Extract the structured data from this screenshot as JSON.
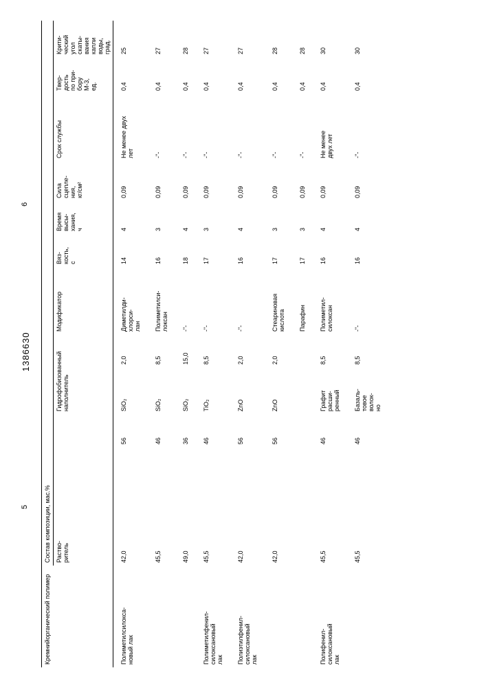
{
  "page_left": "5",
  "doc_number": "1386630",
  "page_right": "6",
  "headers": {
    "polymer_group": "Кремнийорганический полимер",
    "composition_group": "Состав композиции, мас.%",
    "solvent": "Раство-\nритель",
    "filler": "Гидрофобизованный наполнитель",
    "modifier": "Модификатор",
    "viscosity": "Вяз-\nкость,\nс",
    "dry_time": "Время\nвысы-\nхания,\nч",
    "adhesion": "Сила\nсцепле-\nния,\nкг/см²",
    "service_life": "Срок службы",
    "hardness": "Твер-\nдость\nпо при-\nбору\nМ-3,\nед.",
    "angle": "Крити-\nческий\nугол\nскаты-\nвания\nкапли\nводы,\nград."
  },
  "rows": [
    {
      "polymer": "Полиметилсилокса-\nновый лак",
      "pval": "42,0",
      "solvent": "56",
      "fill_name": "SiO₂",
      "fill_val": "2,0",
      "modifier": "Диметилди-\nхлорси-\nлан",
      "visc": "14",
      "dry": "4",
      "adh": "0,09",
      "life": "Не менее двух\nлет",
      "hard": "0,4",
      "angle": "25"
    },
    {
      "polymer": "",
      "pval": "45,5",
      "solvent": "46",
      "fill_name": "SiO₂",
      "fill_val": "8,5",
      "modifier": "Полиметилси-\nлоксан",
      "visc": "16",
      "dry": "3",
      "adh": "0,09",
      "life": "-\"-",
      "hard": "0,4",
      "angle": "27"
    },
    {
      "polymer": "",
      "pval": "49,0",
      "solvent": "36",
      "fill_name": "SiO₂",
      "fill_val": "15,0",
      "modifier": "-\"-",
      "visc": "18",
      "dry": "4",
      "adh": "0,09",
      "life": "-\"-",
      "hard": "0,4",
      "angle": "28"
    },
    {
      "polymer": "Полиметилфенил-\nсилоксановый\nлак",
      "pval": "45,5",
      "solvent": "46",
      "fill_name": "TiO₂",
      "fill_val": "8,5",
      "modifier": "-\"-",
      "visc": "17",
      "dry": "3",
      "adh": "0,09",
      "life": "-\"-",
      "hard": "0,4",
      "angle": "27"
    },
    {
      "polymer": "Полиэтилфенил-\nсилоксановый\nлак",
      "pval": "42,0",
      "solvent": "56",
      "fill_name": "ZnO",
      "fill_val": "2,0",
      "modifier": "-\"-",
      "visc": "16",
      "dry": "4",
      "adh": "0,09",
      "life": "-\"-",
      "hard": "0,4",
      "angle": "27"
    },
    {
      "polymer": "",
      "pval": "42,0",
      "solvent": "56",
      "fill_name": "ZnO",
      "fill_val": "2,0",
      "modifier": "Стеариновая\nкислота",
      "visc": "17",
      "dry": "3",
      "adh": "0,09",
      "life": "-\"-",
      "hard": "0,4",
      "angle": "28"
    },
    {
      "polymer": "",
      "pval": "",
      "solvent": "",
      "fill_name": "",
      "fill_val": "",
      "modifier": "Парафин",
      "visc": "17",
      "dry": "3",
      "adh": "0,09",
      "life": "-\"-",
      "hard": "0,4",
      "angle": "28"
    },
    {
      "polymer": "Полифенил-\nсилоксановый\nлак",
      "pval": "45,5",
      "solvent": "46",
      "fill_name": "Графит\nрасши-\nренный",
      "fill_val": "8,5",
      "modifier": "Полиметил-\nсилоксан",
      "visc": "16",
      "dry": "4",
      "adh": "0,09",
      "life": "Не менее\nдвух лет",
      "hard": "0,4",
      "angle": "30"
    },
    {
      "polymer": "",
      "pval": "45,5",
      "solvent": "46",
      "fill_name": "Базаль-\nтовое\nволок-\nно",
      "fill_val": "8,5",
      "modifier": "-\"-",
      "visc": "16",
      "dry": "4",
      "adh": "0,09",
      "life": "-\"-",
      "hard": "0,4",
      "angle": "30"
    }
  ]
}
